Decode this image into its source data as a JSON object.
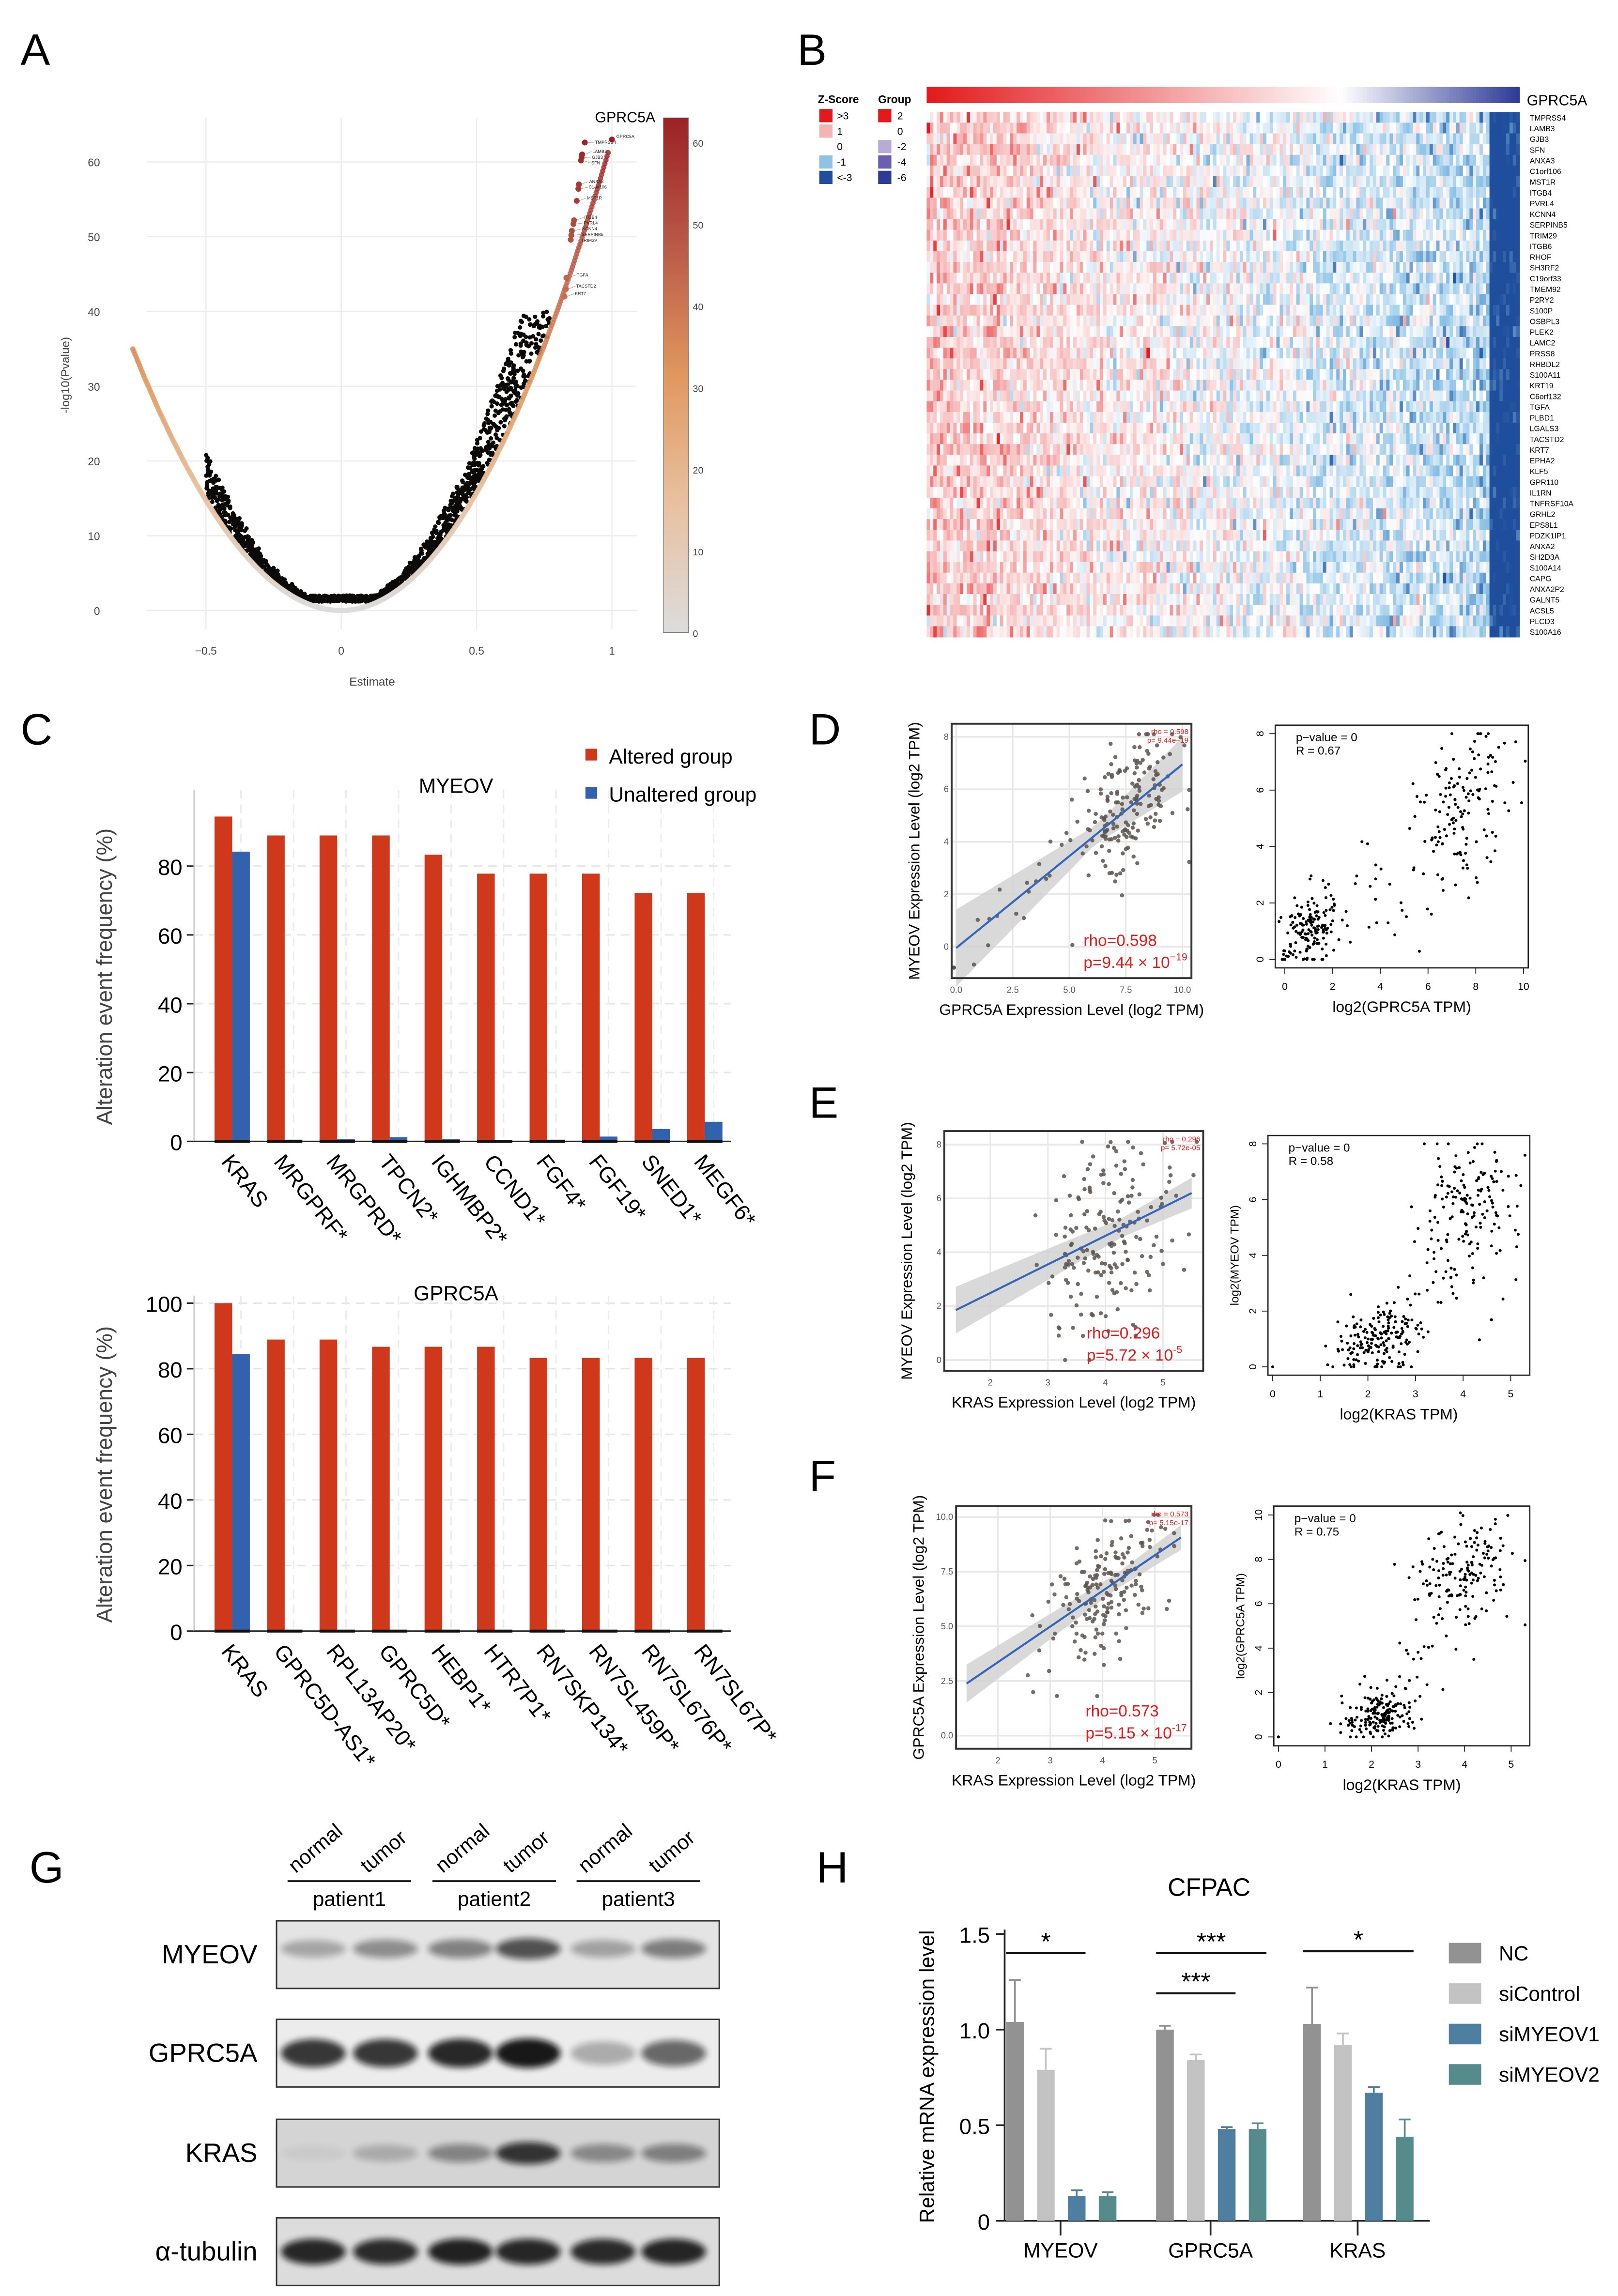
{
  "panel_labels": [
    "A",
    "B",
    "C",
    "D",
    "E",
    "F",
    "G",
    "H"
  ],
  "chart_data": {
    "A": {
      "type": "scatter",
      "title": "GPRC5A",
      "xlabel": "Estimate",
      "ylabel": "-log10(Pvalue)",
      "xticks": [
        -0.5,
        0,
        0.5,
        1
      ],
      "xtick_labels": [
        "−0.5",
        "0",
        "0.5",
        "1"
      ],
      "yticks": [
        0,
        10,
        20,
        30,
        40,
        50,
        60
      ],
      "xlim": [
        -0.78,
        1.1
      ],
      "ylim": [
        -1,
        65
      ],
      "curve_coef_left": 59,
      "curve_coef_right": 63,
      "colorbar": {
        "ticks": [
          0,
          10,
          20,
          30,
          40,
          50,
          60
        ],
        "colors": [
          "#dcdcdc",
          "#e8c1a0",
          "#e0985f",
          "#b85a48",
          "#9b2226"
        ]
      },
      "labeled_points": [
        {
          "label": "GPRC5A",
          "x": 1.0,
          "y": 63
        },
        {
          "label": "TMPRSS4",
          "x": 0.9,
          "y": 62.6
        },
        {
          "label": "LAMB3",
          "x": 0.89,
          "y": 61
        },
        {
          "label": "GJB3",
          "x": 0.888,
          "y": 60.6
        },
        {
          "label": "SFN",
          "x": 0.886,
          "y": 60.2
        },
        {
          "label": "ANXA3",
          "x": 0.878,
          "y": 57
        },
        {
          "label": "C1orf106",
          "x": 0.876,
          "y": 56.4
        },
        {
          "label": "MST1R",
          "x": 0.87,
          "y": 54.8
        },
        {
          "label": "ITGB4",
          "x": 0.86,
          "y": 52.2
        },
        {
          "label": "PVRL4",
          "x": 0.858,
          "y": 51.7
        },
        {
          "label": "KCNN4",
          "x": 0.852,
          "y": 50.8
        },
        {
          "label": "SERPINB5",
          "x": 0.85,
          "y": 50.2
        },
        {
          "label": "TRIM29",
          "x": 0.848,
          "y": 49.6
        },
        {
          "label": "TGFA",
          "x": 0.832,
          "y": 44.5
        },
        {
          "label": "TACSTD2",
          "x": 0.83,
          "y": 43
        },
        {
          "label": "KRT7",
          "x": 0.825,
          "y": 42
        }
      ]
    },
    "B": {
      "type": "heatmap",
      "target": "GPRC5A",
      "n_samples": 178,
      "genes": [
        "TMPRSS4",
        "LAMB3",
        "GJB3",
        "SFN",
        "ANXA3",
        "C1orf106",
        "MST1R",
        "ITGB4",
        "PVRL4",
        "KCNN4",
        "SERPINB5",
        "TRIM29",
        "ITGB6",
        "RHOF",
        "SH3RF2",
        "C19orf33",
        "TMEM92",
        "P2RY2",
        "S100P",
        "OSBPL3",
        "PLEK2",
        "LAMC2",
        "PRSS8",
        "RHBDL2",
        "S100A11",
        "KRT19",
        "C6orf132",
        "TGFA",
        "PLBD1",
        "LGALS3",
        "TACSTD2",
        "KRT7",
        "EPHA2",
        "KLF5",
        "GPR110",
        "IL1RN",
        "TNFRSF10A",
        "GRHL2",
        "EPS8L1",
        "PDZK1IP1",
        "ANXA2",
        "SH2D3A",
        "S100A14",
        "CAPG",
        "ANXA2P2",
        "GALNT5",
        "ACSL5",
        "PLCD3",
        "S100A16"
      ],
      "zscore_legend": {
        "title": "Z-Score",
        "items": [
          {
            "label": ">3",
            "color": "#e31a1c"
          },
          {
            "label": "1",
            "color": "#f5b3b3"
          },
          {
            "label": "0",
            "color": "#ffffff"
          },
          {
            "label": "-1",
            "color": "#8ec3e6"
          },
          {
            "label": "<-3",
            "color": "#1f4e9c"
          }
        ]
      },
      "group_legend": {
        "title": "Group",
        "items": [
          {
            "label": "2",
            "color": "#e31a1c"
          },
          {
            "label": "0",
            "color": "#ffffff"
          },
          {
            "label": "-2",
            "color": "#b7acd8"
          },
          {
            "label": "-4",
            "color": "#6a5fb0"
          },
          {
            "label": "-6",
            "color": "#2f3c96"
          }
        ]
      }
    },
    "C1": {
      "type": "bar",
      "title": "MYEOV",
      "ylabel": "Alteration event frequency (%)",
      "yticks": [
        0,
        20,
        40,
        60,
        80
      ],
      "ylim": [
        0,
        100
      ],
      "categories": [
        "KRAS",
        "MRGPRF*",
        "MRGPRD*",
        "TPCN2*",
        "IGHMBP2*",
        "CCND1*",
        "FGF4*",
        "FGF19*",
        "SNED1*",
        "MEGF6*"
      ],
      "series": [
        {
          "name": "Altered group",
          "color": "#d0381c",
          "values": [
            94.4,
            88.9,
            88.9,
            88.9,
            83.3,
            77.8,
            77.8,
            77.8,
            72.2,
            72.2
          ]
        },
        {
          "name": "Unaltered group",
          "color": "#3262ae",
          "values": [
            84.2,
            0.5,
            0.7,
            1.2,
            0.7,
            0.3,
            0.5,
            1.4,
            3.6,
            5.7
          ]
        }
      ]
    },
    "C2": {
      "type": "bar",
      "title": "GPRC5A",
      "ylabel": "Alteration event frequency (%)",
      "yticks": [
        0,
        20,
        40,
        60,
        80,
        100
      ],
      "ylim": [
        0,
        100
      ],
      "categories": [
        "KRAS",
        "GPRC5D-AS1*",
        "RPL13AP20*",
        "GPRC5D*",
        "HEBP1*",
        "HTR7P1*",
        "RN7SKP134*",
        "RN7SL459P*",
        "RN7SL676P*",
        "RN7SL67P*"
      ],
      "series": [
        {
          "name": "Altered group",
          "color": "#d0381c",
          "values": [
            100,
            88.9,
            88.9,
            86.7,
            86.7,
            86.7,
            83.3,
            83.3,
            83.3,
            83.3
          ]
        },
        {
          "name": "Unaltered group",
          "color": "#3262ae",
          "values": [
            84.5,
            0.3,
            0.3,
            0.3,
            0.3,
            0.3,
            0.3,
            0.3,
            0.3,
            0.3
          ]
        }
      ]
    },
    "D1": {
      "type": "scatter",
      "xlabel": "GPRC5A Expression Level (log2 TPM)",
      "ylabel": "MYEOV Expression Level (log2 TPM)",
      "xticks": [
        0,
        2.5,
        5,
        7.5,
        10
      ],
      "xtick_labels": [
        "0.0",
        "2.5",
        "5.0",
        "7.5",
        "10.0"
      ],
      "yticks": [
        0,
        2,
        4,
        6,
        8
      ],
      "ytick_labels": [
        "0",
        "2",
        "4",
        "6",
        "8"
      ],
      "xlim": [
        -0.2,
        10.4
      ],
      "ylim": [
        -1.2,
        8.5
      ],
      "rho_label": "rho=0.598",
      "p_label": "p=9.44 × 10",
      "p_exp": "−19",
      "corner_rho": "rho = 0.598",
      "corner_p": "p= 9.44e−19",
      "fit": {
        "intercept": -0.05,
        "slope": 0.7,
        "x_range": [
          0,
          10
        ]
      },
      "clusters": [
        {
          "n": 170,
          "x_mean": 7.6,
          "x_sd": 1.1,
          "y_sd": 1.3
        },
        {
          "n": 18,
          "x_mean": 2.5,
          "x_sd": 1.6,
          "y_sd": 0.9
        }
      ]
    },
    "D2": {
      "type": "scatter",
      "xlabel": "log2(GPRC5A TPM)",
      "stat_p": "p−value = 0",
      "stat_r": "R = 0.67",
      "xticks": [
        0,
        2,
        4,
        6,
        8,
        10
      ],
      "yticks": [
        0,
        2,
        4,
        6,
        8
      ],
      "xlim": [
        -0.4,
        10.2
      ],
      "ylim": [
        -0.3,
        8.3
      ],
      "clusters": [
        {
          "n": 150,
          "x_mean": 1.0,
          "x_sd": 0.55,
          "y_mean": 1.0,
          "y_sd": 0.7
        },
        {
          "n": 140,
          "x_mean": 7.5,
          "x_sd": 1.0,
          "y_mean": 5.4,
          "y_sd": 1.2
        },
        {
          "n": 30,
          "x_mean": 4.5,
          "x_sd": 1.4,
          "y_mean": 2.6,
          "y_sd": 1.2
        }
      ]
    },
    "E1": {
      "type": "scatter",
      "xlabel": "KRAS Expression Level (log2 TPM)",
      "ylabel": "MYEOV Expression Level (log2 TPM)",
      "xticks": [
        2,
        3,
        4,
        5
      ],
      "xtick_labels": [
        "2",
        "3",
        "4",
        "5"
      ],
      "yticks": [
        0,
        2,
        4,
        6,
        8
      ],
      "ytick_labels": [
        "0",
        "2",
        "4",
        "6",
        "8"
      ],
      "xlim": [
        1.2,
        5.7
      ],
      "ylim": [
        -0.4,
        8.5
      ],
      "rho_label": "rho=0.296",
      "p_label": "p=5.72 × 10",
      "p_exp": "-5",
      "corner_rho": "rho = 0.296",
      "corner_p": "p= 5.72e-05",
      "fit": {
        "intercept": 0.37,
        "slope": 1.06,
        "x_range": [
          1.4,
          5.5
        ]
      },
      "clusters": [
        {
          "n": 180,
          "x_mean": 4.1,
          "x_sd": 0.6,
          "y_sd": 1.7
        }
      ]
    },
    "E2": {
      "type": "scatter",
      "xlabel": "log2(KRAS TPM)",
      "ylabel": "log2(MYEOV TPM)",
      "stat_p": "p−value = 0",
      "stat_r": "R = 0.58",
      "xticks": [
        0,
        1,
        2,
        3,
        4,
        5
      ],
      "yticks": [
        0,
        2,
        4,
        6,
        8
      ],
      "xlim": [
        -0.1,
        5.4
      ],
      "ylim": [
        -0.3,
        8.3
      ],
      "clusters": [
        {
          "n": 170,
          "x_mean": 2.2,
          "x_sd": 0.45,
          "y_mean": 1.0,
          "y_sd": 0.6
        },
        {
          "n": 150,
          "x_mean": 4.0,
          "x_sd": 0.55,
          "y_mean": 5.6,
          "y_sd": 1.1
        },
        {
          "n": 30,
          "x_mean": 3.5,
          "x_sd": 0.8,
          "y_mean": 2.7,
          "y_sd": 0.8
        }
      ]
    },
    "F1": {
      "type": "scatter",
      "xlabel": "KRAS Expression Level (log2 TPM)",
      "ylabel": "GPRC5A Expression Level (log2 TPM)",
      "xticks": [
        2,
        3,
        4,
        5
      ],
      "xtick_labels": [
        "2",
        "3",
        "4",
        "5"
      ],
      "yticks": [
        0,
        2.5,
        5,
        7.5,
        10
      ],
      "ytick_labels": [
        "0.0",
        "2.5",
        "5.0",
        "7.5",
        "10.0"
      ],
      "xlim": [
        1.2,
        5.7
      ],
      "ylim": [
        -0.6,
        10.5
      ],
      "rho_label": "rho=0.573",
      "p_label": "p=5.15 × 10",
      "p_exp": "-17",
      "corner_rho": "rho = 0.573",
      "corner_p": "p= 5.15e-17",
      "fit": {
        "intercept": 0.1,
        "slope": 1.63,
        "x_range": [
          1.4,
          5.5
        ]
      },
      "clusters": [
        {
          "n": 180,
          "x_mean": 4.1,
          "x_sd": 0.6,
          "y_sd": 1.4
        }
      ]
    },
    "F2": {
      "type": "scatter",
      "xlabel": "log2(KRAS TPM)",
      "ylabel": "log2(GPRC5A TPM)",
      "stat_p": "p−value = 0",
      "stat_r": "R = 0.75",
      "xticks": [
        0,
        1,
        2,
        3,
        4,
        5
      ],
      "yticks": [
        0,
        2,
        4,
        6,
        8,
        10
      ],
      "xlim": [
        -0.1,
        5.4
      ],
      "ylim": [
        -0.4,
        10.4
      ],
      "clusters": [
        {
          "n": 170,
          "x_mean": 2.2,
          "x_sd": 0.4,
          "y_mean": 1.0,
          "y_sd": 0.55
        },
        {
          "n": 150,
          "x_mean": 4.0,
          "x_sd": 0.5,
          "y_mean": 7.5,
          "y_sd": 1.0
        },
        {
          "n": 30,
          "x_mean": 3.2,
          "x_sd": 0.6,
          "y_mean": 3.8,
          "y_sd": 1.2
        }
      ]
    },
    "H": {
      "type": "bar",
      "title": "CFPAC",
      "ylabel": "Relative mRNA expression level",
      "yticks": [
        0,
        0.5,
        1.0,
        1.5
      ],
      "ytick_labels": [
        "0",
        "0.5",
        "1.0",
        "1.5"
      ],
      "ylim": [
        0,
        1.5
      ],
      "categories": [
        "MYEOV",
        "GPRC5A",
        "KRAS"
      ],
      "series": [
        {
          "name": "NC",
          "color": "#929292",
          "values": [
            1.04,
            1.0,
            1.03
          ],
          "errors": [
            0.22,
            0.02,
            0.19
          ]
        },
        {
          "name": "siControl",
          "color": "#c3c3c3",
          "values": [
            0.79,
            0.84,
            0.92
          ],
          "errors": [
            0.11,
            0.03,
            0.06
          ]
        },
        {
          "name": "siMYEOV1",
          "color": "#4e7fa0",
          "values": [
            0.13,
            0.48,
            0.67
          ],
          "errors": [
            0.03,
            0.01,
            0.03
          ]
        },
        {
          "name": "siMYEOV2",
          "color": "#568b8c",
          "values": [
            0.13,
            0.48,
            0.44
          ],
          "errors": [
            0.02,
            0.03,
            0.09
          ]
        }
      ],
      "significance": [
        {
          "label": "*",
          "category": 0,
          "from": 0,
          "to": 2,
          "level": 1.4
        },
        {
          "label": "***",
          "category": 1,
          "from": 0,
          "to": 3,
          "level": 1.4
        },
        {
          "label": "***",
          "category": 1,
          "from": 0,
          "to": 2,
          "level": 1.19
        },
        {
          "label": "*",
          "category": 2,
          "from": 0,
          "to": 3,
          "level": 1.41
        }
      ]
    }
  },
  "western_blot": {
    "lanes": [
      "normal",
      "tumor",
      "normal",
      "tumor",
      "normal",
      "tumor"
    ],
    "patients": [
      "patient1",
      "patient2",
      "patient3"
    ],
    "rows": [
      {
        "label": "MYEOV",
        "intensities": [
          0.3,
          0.42,
          0.48,
          0.72,
          0.32,
          0.5
        ],
        "background": "#e4e4e4"
      },
      {
        "label": "GPRC5A",
        "intensities": [
          0.85,
          0.85,
          0.92,
          1.0,
          0.3,
          0.62
        ],
        "background": "#ececec"
      },
      {
        "label": "KRAS",
        "intensities": [
          0.05,
          0.22,
          0.42,
          0.85,
          0.4,
          0.45
        ],
        "background": "#d4d4d4"
      },
      {
        "label": "α-tubulin",
        "intensities": [
          0.92,
          0.9,
          0.95,
          0.92,
          0.9,
          0.93
        ],
        "background": "#dcdcdc"
      }
    ]
  }
}
